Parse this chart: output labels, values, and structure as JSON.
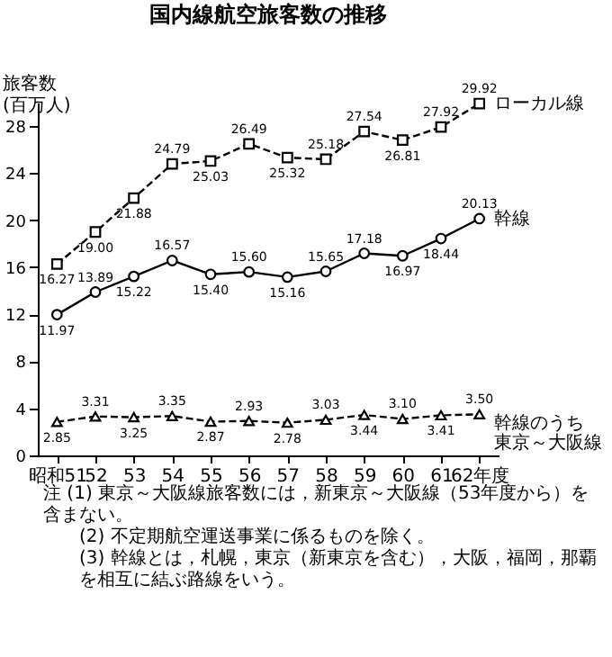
{
  "chart_data": {
    "type": "line",
    "title": "国内線航空旅客数の推移",
    "ylabel": "旅客数\n(百万人)",
    "categories": [
      "昭和51",
      "52",
      "53",
      "54",
      "55",
      "56",
      "57",
      "58",
      "59",
      "60",
      "61",
      "62年度"
    ],
    "series": [
      {
        "name": "ローカル線",
        "color": "#000000",
        "marker": "square",
        "line_style": "dashed",
        "values": [
          16.27,
          19.0,
          21.88,
          24.79,
          25.03,
          26.49,
          25.32,
          25.18,
          27.54,
          26.81,
          27.92,
          29.92
        ],
        "value_labels": [
          "16.27",
          "19.00",
          "21.88",
          "24.79",
          "25.03",
          "26.49",
          "25.32",
          "25.18",
          "27.54",
          "26.81",
          "27.92",
          "29.92"
        ]
      },
      {
        "name": "幹線",
        "color": "#000000",
        "marker": "circle",
        "line_style": "solid",
        "values": [
          11.97,
          13.89,
          15.22,
          16.57,
          15.4,
          15.6,
          15.16,
          15.65,
          17.18,
          16.97,
          18.44,
          20.13
        ],
        "value_labels": [
          "11.97",
          "13.89",
          "15.22",
          "16.57",
          "15.40",
          "15.60",
          "15.16",
          "15.65",
          "17.18",
          "16.97",
          "18.44",
          "20.13"
        ]
      },
      {
        "name": "幹線のうち東京～大阪線",
        "color": "#000000",
        "marker": "triangle",
        "line_style": "dashed",
        "values": [
          2.85,
          3.31,
          3.25,
          3.35,
          2.87,
          2.93,
          2.78,
          3.03,
          3.44,
          3.1,
          3.41,
          3.5
        ],
        "value_labels": [
          "2.85",
          "3.31",
          "3.25",
          "3.35",
          "2.87",
          "2.93",
          "2.78",
          "3.03",
          "3.44",
          "3.10",
          "3.41",
          "3.50"
        ]
      }
    ],
    "ylim": [
      0,
      30
    ],
    "yticks": [
      0,
      4,
      8,
      12,
      16,
      20,
      24,
      28
    ],
    "grid": false,
    "legend": "right",
    "annotations": [
      "注 (1) 東京～大阪線旅客数には，新東京～大阪線（53年度から）を含まない。",
      "(2) 不定期航空運送事業に係るものを除く。",
      "(3) 幹線とは，札幌，東京（新東京を含む），大阪，福岡，那覇を相互に結ぶ路線をいう。"
    ]
  }
}
